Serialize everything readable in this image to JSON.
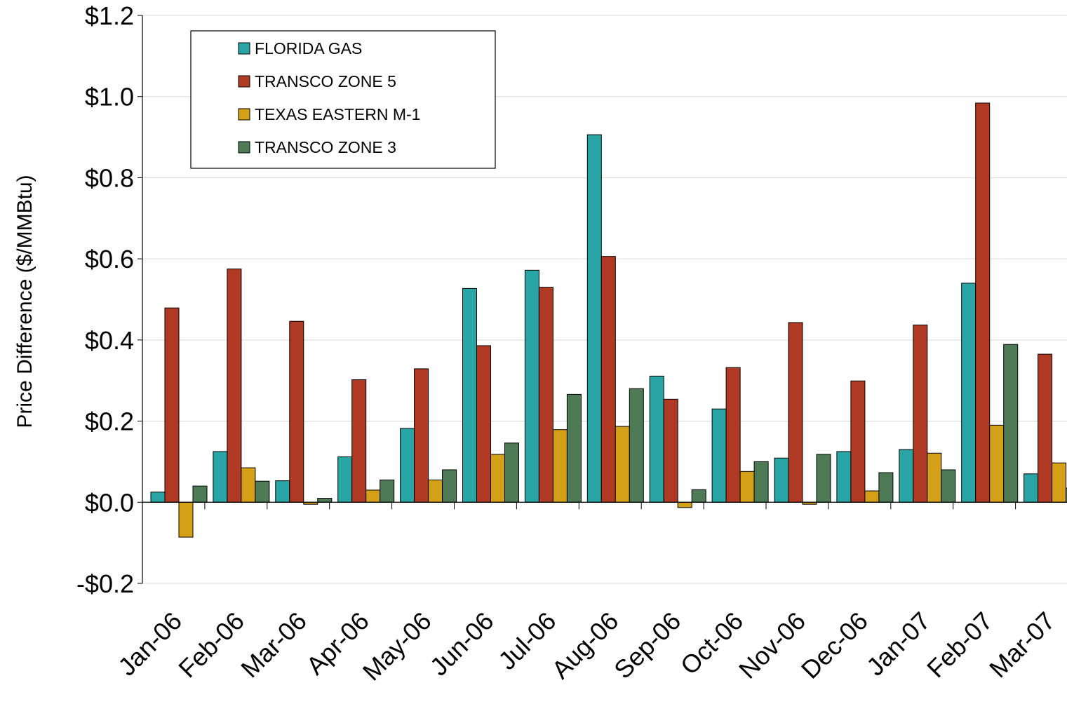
{
  "chart_data": {
    "type": "bar",
    "title": "",
    "xlabel": "",
    "ylabel": "Price Difference ($/MMBtu)",
    "ylim": [
      -0.2,
      1.2
    ],
    "ytick_values": [
      -0.2,
      0.0,
      0.2,
      0.4,
      0.6,
      0.8,
      1.0,
      1.2
    ],
    "ytick_labels": [
      "-$0.2",
      "$0.0",
      "$0.2",
      "$0.4",
      "$0.6",
      "$0.8",
      "$1.0",
      "$1.2"
    ],
    "grid": true,
    "legend_position": "top-left",
    "categories": [
      "Jan-06",
      "Feb-06",
      "Mar-06",
      "Apr-06",
      "May-06",
      "Jun-06",
      "Jul-06",
      "Aug-06",
      "Sep-06",
      "Oct-06",
      "Nov-06",
      "Dec-06",
      "Jan-07",
      "Feb-07",
      "Mar-07"
    ],
    "series": [
      {
        "name": "FLORIDA GAS",
        "color": "#2aa5a6",
        "values": [
          0.025,
          0.125,
          0.053,
          0.112,
          0.182,
          0.527,
          0.572,
          0.906,
          0.311,
          0.23,
          0.109,
          0.125,
          0.13,
          0.54,
          0.07
        ]
      },
      {
        "name": "TRANSCO ZONE 5",
        "color": "#b03a24",
        "values": [
          0.479,
          0.575,
          0.446,
          0.302,
          0.329,
          0.386,
          0.53,
          0.606,
          0.254,
          0.332,
          0.443,
          0.299,
          0.437,
          0.984,
          0.365
        ]
      },
      {
        "name": "TEXAS EASTERN M-1",
        "color": "#d4a017",
        "values": [
          -0.086,
          0.085,
          -0.005,
          0.03,
          0.055,
          0.118,
          0.179,
          0.187,
          -0.013,
          0.076,
          -0.005,
          0.028,
          0.121,
          0.19,
          0.097
        ]
      },
      {
        "name": "TRANSCO ZONE 3",
        "color": "#4e7b56",
        "values": [
          0.04,
          0.052,
          0.01,
          0.055,
          0.08,
          0.146,
          0.266,
          0.28,
          0.031,
          0.1,
          0.118,
          0.073,
          0.08,
          0.389,
          0.035
        ]
      }
    ]
  }
}
